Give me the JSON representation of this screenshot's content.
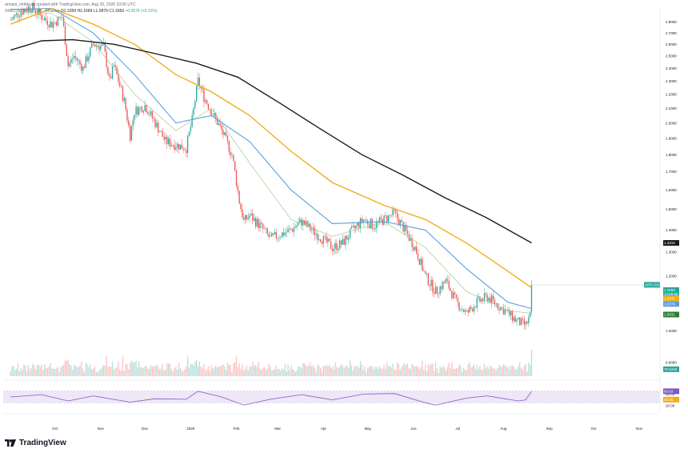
{
  "header": {
    "author_line": "armani_ohihkyan created with TradingView.com, Aug 20, 2026 10:00 UTC",
    "symbol_line": "XRP / TetherUS · 1D · Binance",
    "ohlc": {
      "open": "O1.1059",
      "high": "H1.1669",
      "low": "L1.0879",
      "close": "C1.1656",
      "change": "+0.0576 (+5.21%)"
    }
  },
  "branding": {
    "logo_text": "TradingView"
  },
  "colors": {
    "up": "#26a69a",
    "down": "#ef5350",
    "ema_fast": "#a5c890",
    "ema_mid": "#5b9fdc",
    "ema_slow": "#f2ac1e",
    "ema_long": "#1a1a1a",
    "rsi_line": "#7e57c2",
    "rsi_band": "#ede7f6"
  },
  "chart_data": {
    "type": "line",
    "title": "",
    "x_tick_labels": [
      "Oct",
      "Nov",
      "Dec",
      "2026",
      "Feb",
      "Mar",
      "Apr",
      "May",
      "Jun",
      "Jul",
      "Aug",
      "Sep",
      "Oct",
      "Nov"
    ],
    "y_axis": {
      "scale": "log",
      "range": [
        0.86,
        2.95
      ],
      "tick_labels": [
        "2.8000",
        "2.7000",
        "2.6000",
        "2.5000",
        "2.4000",
        "2.3000",
        "2.2000",
        "2.1000",
        "2.0000",
        "1.9000",
        "1.8000",
        "1.7000",
        "1.6000",
        "1.5000",
        "1.4000",
        "1.3000",
        "1.2000",
        "1.1000",
        "1.0000",
        "0.9000"
      ],
      "price_labels": [
        {
          "text": "XRPUSDT",
          "value": 1.166,
          "color": "#26a69a"
        },
        {
          "text": "1.1656",
          "value": 1.146,
          "color": "#26a69a"
        },
        {
          "text": "13:59:59",
          "value": 1.131,
          "color": "#26a69a"
        },
        {
          "text": "1.1547",
          "value": 1.115,
          "color": "#f2ac1e"
        },
        {
          "text": "1.0776",
          "value": 1.094,
          "color": "#5b9fdc"
        },
        {
          "text": "1.0531",
          "value": 1.056,
          "color": "#2e7d32"
        },
        {
          "text": "1.3410",
          "value": 1.341,
          "color": "#1a1a1a"
        },
        {
          "text": "70.8446",
          "value": 0.88,
          "color": "#26a69a"
        }
      ]
    },
    "series": [
      {
        "name": "XRPUSDT",
        "type": "candlestick",
        "close_path": [
          [
            "Sep 01",
            2.82
          ],
          [
            "Sep 08",
            2.9
          ],
          [
            "Sep 15",
            2.95
          ],
          [
            "Sep 22",
            2.85
          ],
          [
            "Sep 29",
            2.78
          ],
          [
            "Oct 06",
            2.85
          ],
          [
            "Oct 10",
            2.42
          ],
          [
            "Oct 14",
            2.5
          ],
          [
            "Oct 20",
            2.4
          ],
          [
            "Oct 27",
            2.6
          ],
          [
            "Nov 03",
            2.58
          ],
          [
            "Nov 07",
            2.3
          ],
          [
            "Nov 10",
            2.42
          ],
          [
            "Nov 17",
            2.15
          ],
          [
            "Nov 21",
            1.92
          ],
          [
            "Nov 24",
            2.08
          ],
          [
            "Dec 01",
            2.12
          ],
          [
            "Dec 08",
            2.0
          ],
          [
            "Dec 15",
            1.88
          ],
          [
            "Dec 22",
            1.86
          ],
          [
            "Dec 29",
            1.84
          ],
          [
            "Jan 02",
            2.02
          ],
          [
            "Jan 06",
            2.3
          ],
          [
            "Jan 10",
            2.18
          ],
          [
            "Jan 15",
            2.08
          ],
          [
            "Jan 22",
            1.95
          ],
          [
            "Jan 29",
            1.8
          ],
          [
            "Feb 03",
            1.54
          ],
          [
            "Feb 06",
            1.44
          ],
          [
            "Feb 10",
            1.47
          ],
          [
            "Feb 17",
            1.42
          ],
          [
            "Feb 24",
            1.36
          ],
          [
            "Mar 03",
            1.38
          ],
          [
            "Mar 10",
            1.4
          ],
          [
            "Mar 17",
            1.44
          ],
          [
            "Mar 24",
            1.4
          ],
          [
            "Mar 31",
            1.36
          ],
          [
            "Apr 07",
            1.32
          ],
          [
            "Apr 14",
            1.34
          ],
          [
            "Apr 21",
            1.4
          ],
          [
            "Apr 28",
            1.45
          ],
          [
            "May 05",
            1.42
          ],
          [
            "May 12",
            1.45
          ],
          [
            "May 19",
            1.48
          ],
          [
            "May 26",
            1.4
          ],
          [
            "Jun 02",
            1.32
          ],
          [
            "Jun 09",
            1.2
          ],
          [
            "Jun 16",
            1.14
          ],
          [
            "Jun 23",
            1.18
          ],
          [
            "Jun 30",
            1.1
          ],
          [
            "Jul 07",
            1.06
          ],
          [
            "Jul 14",
            1.1
          ],
          [
            "Jul 21",
            1.12
          ],
          [
            "Jul 28",
            1.09
          ],
          [
            "Aug 04",
            1.06
          ],
          [
            "Aug 11",
            1.03
          ],
          [
            "Aug 16",
            1.02
          ],
          [
            "Aug 19",
            1.05
          ],
          [
            "Aug 20",
            1.1656
          ]
        ]
      },
      {
        "name": "EMA fast",
        "points": [
          [
            "Sep 01",
            2.9
          ],
          [
            "Sep 29",
            2.88
          ],
          [
            "Oct 27",
            2.62
          ],
          [
            "Nov 24",
            2.2
          ],
          [
            "Dec 22",
            1.95
          ],
          [
            "Jan 15",
            2.1
          ],
          [
            "Feb 10",
            1.75
          ],
          [
            "Mar 10",
            1.45
          ],
          [
            "Apr 07",
            1.37
          ],
          [
            "May 12",
            1.44
          ],
          [
            "Jun 09",
            1.32
          ],
          [
            "Jul 07",
            1.14
          ],
          [
            "Aug 04",
            1.07
          ],
          [
            "Aug 20",
            1.06
          ]
        ]
      },
      {
        "name": "EMA mid",
        "points": [
          [
            "Sep 01",
            2.92
          ],
          [
            "Sep 29",
            2.93
          ],
          [
            "Oct 27",
            2.7
          ],
          [
            "Nov 24",
            2.35
          ],
          [
            "Dec 22",
            2.0
          ],
          [
            "Jan 15",
            2.05
          ],
          [
            "Feb 10",
            1.88
          ],
          [
            "Mar 10",
            1.6
          ],
          [
            "Apr 07",
            1.43
          ],
          [
            "May 12",
            1.44
          ],
          [
            "Jun 09",
            1.4
          ],
          [
            "Jul 07",
            1.23
          ],
          [
            "Aug 04",
            1.1
          ],
          [
            "Aug 20",
            1.0776
          ]
        ]
      },
      {
        "name": "EMA slow",
        "points": [
          [
            "Sep 01",
            2.78
          ],
          [
            "Sep 29",
            2.93
          ],
          [
            "Oct 27",
            2.78
          ],
          [
            "Nov 24",
            2.6
          ],
          [
            "Dec 22",
            2.35
          ],
          [
            "Jan 15",
            2.22
          ],
          [
            "Feb 10",
            2.05
          ],
          [
            "Mar 10",
            1.82
          ],
          [
            "Apr 07",
            1.64
          ],
          [
            "May 12",
            1.52
          ],
          [
            "Jun 09",
            1.45
          ],
          [
            "Jul 07",
            1.34
          ],
          [
            "Aug 04",
            1.22
          ],
          [
            "Aug 20",
            1.1547
          ]
        ]
      },
      {
        "name": "EMA long",
        "points": [
          [
            "Sep 01",
            2.55
          ],
          [
            "Sep 22",
            2.63
          ],
          [
            "Oct 13",
            2.64
          ],
          [
            "Nov 10",
            2.6
          ],
          [
            "Dec 08",
            2.52
          ],
          [
            "Jan 05",
            2.44
          ],
          [
            "Feb 02",
            2.33
          ],
          [
            "Mar 02",
            2.14
          ],
          [
            "Mar 30",
            1.96
          ],
          [
            "Apr 27",
            1.8
          ],
          [
            "May 25",
            1.68
          ],
          [
            "Jun 22",
            1.56
          ],
          [
            "Jul 20",
            1.46
          ],
          [
            "Aug 20",
            1.341
          ]
        ]
      }
    ],
    "volume": {
      "up_color": "#26a69a",
      "down_color": "#ef5350"
    },
    "rsi": {
      "range": [
        0,
        100
      ],
      "band": [
        30,
        70
      ],
      "tick_labels": [
        "60.00",
        "40.00",
        "20.00"
      ],
      "labels": [
        {
          "text": "69.83",
          "value": 69.83
        },
        {
          "text": "40.86",
          "value": 40.86
        }
      ],
      "points": [
        [
          "Sep 01",
          50
        ],
        [
          "Sep 22",
          58
        ],
        [
          "Oct 10",
          36
        ],
        [
          "Oct 27",
          54
        ],
        [
          "Nov 21",
          32
        ],
        [
          "Dec 08",
          44
        ],
        [
          "Dec 29",
          42
        ],
        [
          "Jan 06",
          70
        ],
        [
          "Jan 22",
          50
        ],
        [
          "Feb 06",
          22
        ],
        [
          "Feb 24",
          42
        ],
        [
          "Mar 17",
          58
        ],
        [
          "Apr 07",
          40
        ],
        [
          "Apr 28",
          60
        ],
        [
          "May 19",
          62
        ],
        [
          "Jun 09",
          30
        ],
        [
          "Jun 16",
          22
        ],
        [
          "Jul 07",
          46
        ],
        [
          "Jul 21",
          54
        ],
        [
          "Aug 11",
          36
        ],
        [
          "Aug 16",
          40
        ],
        [
          "Aug 20",
          69.83
        ]
      ]
    }
  }
}
